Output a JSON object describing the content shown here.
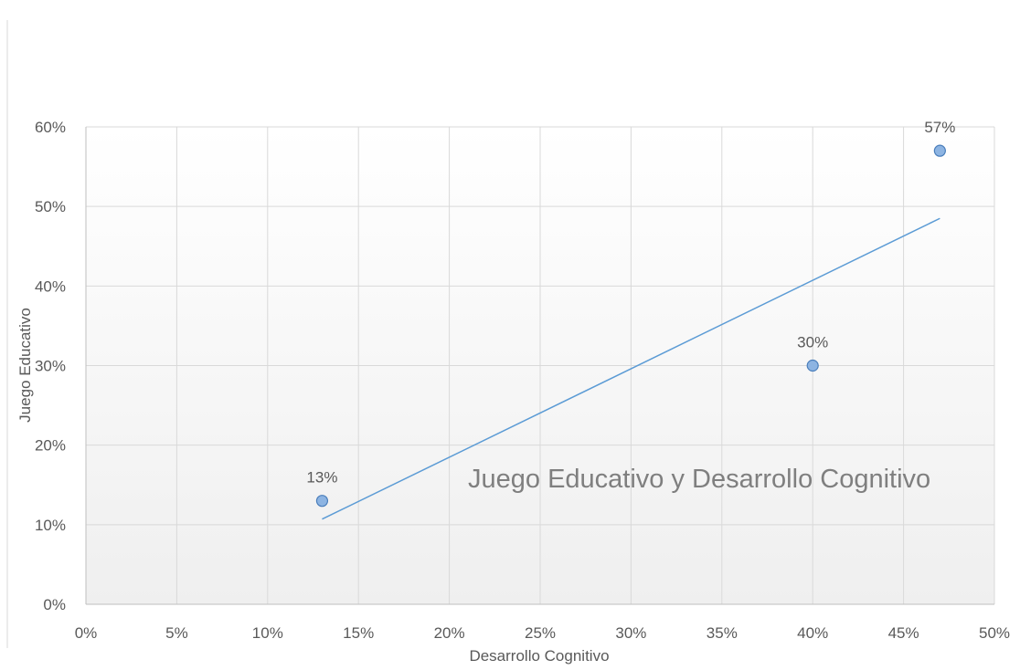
{
  "chart_data": {
    "type": "scatter",
    "title": "Juego Educativo y Desarrollo Cognitivo",
    "xlabel": "Desarrollo Cognitivo",
    "ylabel": "Juego Educativo",
    "xlim": [
      0,
      0.5
    ],
    "ylim": [
      0,
      0.6
    ],
    "x_ticks": [
      0,
      0.05,
      0.1,
      0.15,
      0.2,
      0.25,
      0.3,
      0.35,
      0.4,
      0.45,
      0.5
    ],
    "x_tick_labels": [
      "0%",
      "5%",
      "10%",
      "15%",
      "20%",
      "25%",
      "30%",
      "35%",
      "40%",
      "45%",
      "50%"
    ],
    "y_ticks": [
      0,
      0.1,
      0.2,
      0.3,
      0.4,
      0.5,
      0.6
    ],
    "y_tick_labels": [
      "0%",
      "10%",
      "20%",
      "30%",
      "40%",
      "50%",
      "60%"
    ],
    "grid": true,
    "series": [
      {
        "points": [
          {
            "x": 0.13,
            "y": 0.13,
            "label": "13%"
          },
          {
            "x": 0.4,
            "y": 0.3,
            "label": "30%"
          },
          {
            "x": 0.47,
            "y": 0.57,
            "label": "57%"
          }
        ]
      }
    ],
    "trendline": {
      "type": "linear",
      "start": {
        "x": 0.13,
        "y": 0.107
      },
      "end": {
        "x": 0.47,
        "y": 0.485
      }
    },
    "colors": {
      "marker_fill": "#8db4e2",
      "marker_stroke": "#4a7ebb",
      "trendline": "#5b9bd5",
      "grid": "#d9d9d9",
      "text": "#595959",
      "title": "#7f7f7f"
    }
  }
}
